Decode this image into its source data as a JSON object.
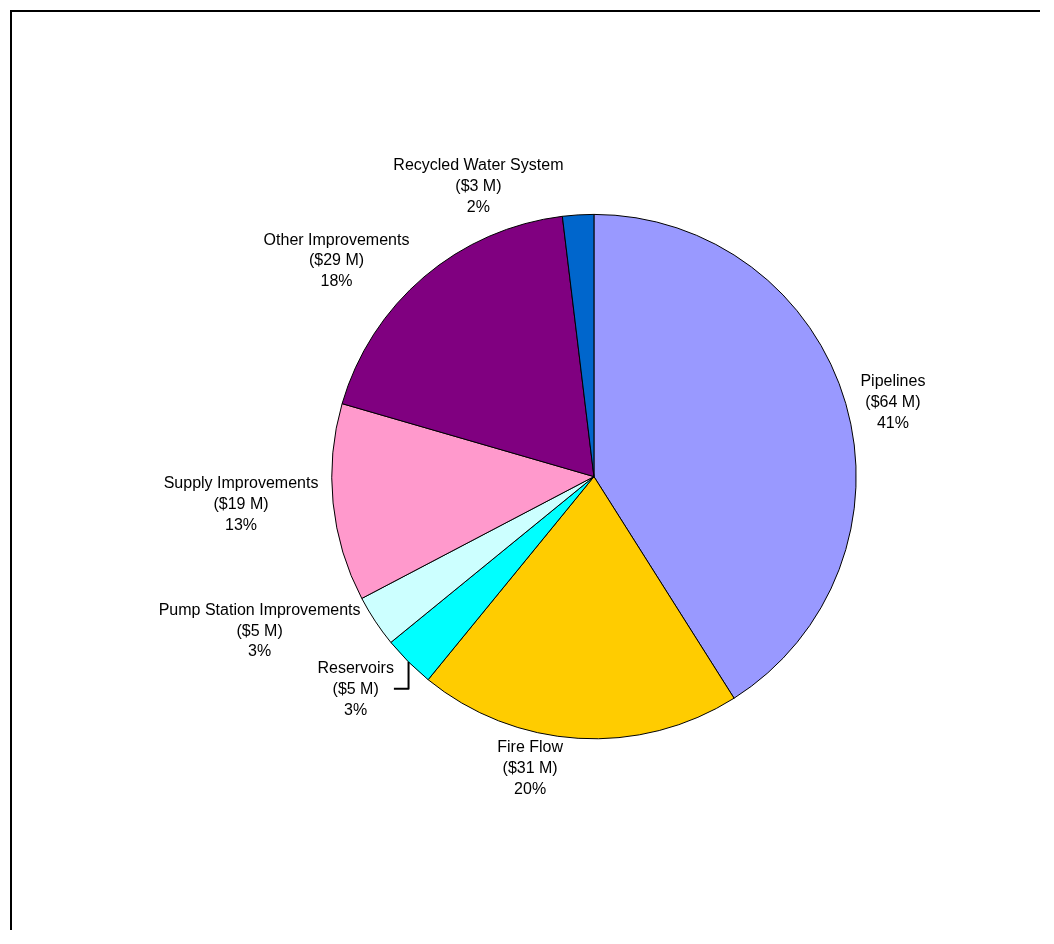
{
  "chart_data": {
    "type": "pie",
    "categories": [
      "Pipelines",
      "Fire Flow",
      "Reservoirs",
      "Pump Station Improvements",
      "Supply Improvements",
      "Other Improvements",
      "Recycled Water System"
    ],
    "values": [
      64,
      31,
      5,
      5,
      19,
      29,
      3
    ],
    "value_labels": [
      "($64 M)\n41%",
      "($31 M)\n20%",
      "($5 M)\n3%",
      "($5 M)\n3%",
      "($19 M)\n13%",
      "($29 M)\n18%",
      "($3 M)\n2%"
    ],
    "colors": [
      "#9999ff",
      "#ffcc00",
      "#00ffff",
      "#ccffff",
      "#ff99cc",
      "#800080",
      "#0066cc"
    ],
    "legend": false
  }
}
